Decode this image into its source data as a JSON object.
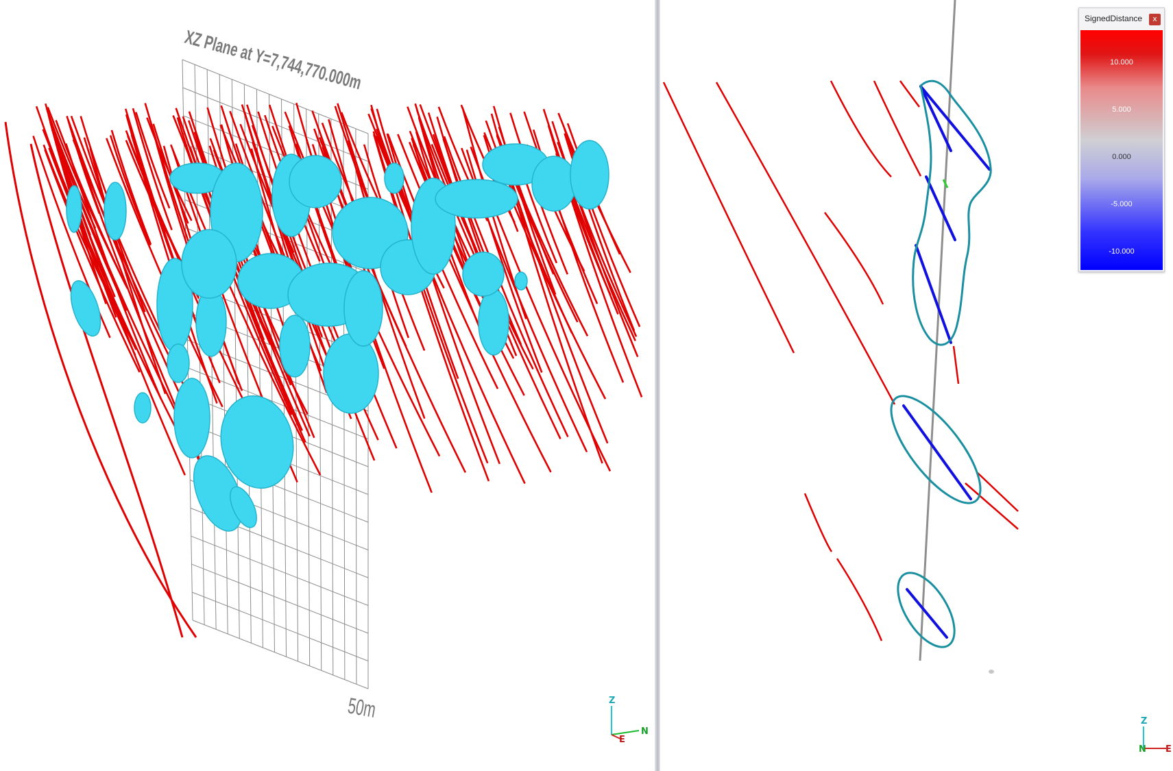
{
  "left_view": {
    "plane_label": "XZ Plane at Y=7,744,770.000m",
    "scale_label": "50m",
    "axes": {
      "z": "Z",
      "north": "N",
      "east": "E"
    }
  },
  "right_view": {
    "axes": {
      "z": "Z",
      "north": "N",
      "east": "E"
    }
  },
  "legend": {
    "title": "SignedDistance",
    "close_label": "x",
    "ticks": [
      "10.000",
      "5.000",
      "0.000",
      "-5.000",
      "-10.000"
    ]
  },
  "colors": {
    "drillhole": "#e00000",
    "drillhole_inside": "#1010e0",
    "isosurface": "#3fd7ef",
    "contour": "#1a8fa0",
    "plane_grid": "#8c8c8c",
    "section_line": "#8e8e8e"
  }
}
